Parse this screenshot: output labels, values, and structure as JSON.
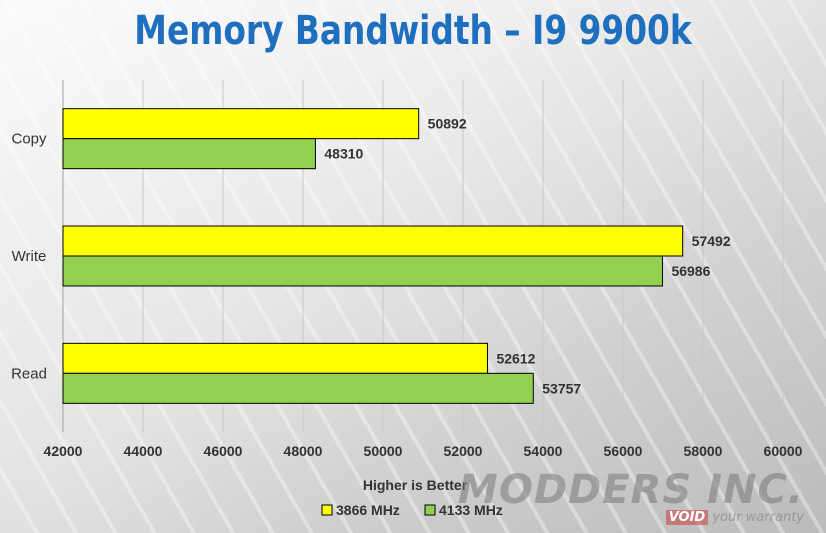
{
  "title": "Memory Bandwidth – I9 9900k",
  "colors": {
    "title": "#1f6fbf",
    "series_1": "#ffff00",
    "series_2": "#92d050",
    "text": "#333333"
  },
  "watermark": {
    "main": "MODDERS INC.",
    "void": "VOID",
    "sub": "your warranty"
  },
  "chart_data": {
    "type": "bar",
    "orientation": "horizontal",
    "categories": [
      "Copy",
      "Write",
      "Read"
    ],
    "series": [
      {
        "name": "3866 MHz",
        "values": [
          50892,
          57492,
          52612
        ]
      },
      {
        "name": "4133 MHz",
        "values": [
          48310,
          56986,
          53757
        ]
      }
    ],
    "xlim": [
      42000,
      60000
    ],
    "xticks": [
      42000,
      44000,
      46000,
      48000,
      50000,
      52000,
      54000,
      56000,
      58000,
      60000
    ],
    "xlabel": "Higher is Better",
    "grid": true,
    "legend": "bottom",
    "data_labels": true
  }
}
